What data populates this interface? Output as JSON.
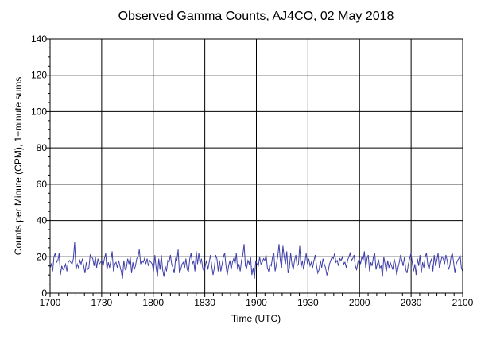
{
  "chart_data": {
    "type": "line",
    "title": "Observed Gamma Counts, AJ4CO, 02 May 2018",
    "xlabel": "Time (UTC)",
    "ylabel": "Counts per Minute (CPM), 1−minute sums",
    "xlim": [
      "17:00",
      "21:00"
    ],
    "ylim": [
      0,
      140
    ],
    "x_ticks": [
      "1700",
      "1730",
      "1800",
      "1830",
      "1900",
      "1930",
      "2000",
      "2030",
      "2100"
    ],
    "y_ticks": [
      "0",
      "20",
      "40",
      "60",
      "80",
      "100",
      "120",
      "140"
    ],
    "grid": true,
    "series_color": "#3f3fa8",
    "x_start": "17:00",
    "x_step": "1 min",
    "values": [
      14,
      16,
      12,
      20,
      22,
      17,
      18,
      22,
      10,
      15,
      13,
      14,
      16,
      12,
      17,
      18,
      17,
      16,
      19,
      28,
      13,
      16,
      14,
      18,
      16,
      19,
      15,
      11,
      17,
      13,
      14,
      21,
      20,
      19,
      15,
      20,
      14,
      19,
      16,
      17,
      18,
      15,
      19,
      22,
      13,
      17,
      14,
      18,
      23,
      12,
      16,
      17,
      14,
      18,
      15,
      12,
      8,
      18,
      13,
      14,
      19,
      16,
      20,
      11,
      17,
      13,
      15,
      19,
      20,
      24,
      16,
      18,
      17,
      19,
      16,
      19,
      15,
      18,
      17,
      16,
      12,
      21,
      14,
      9,
      19,
      13,
      21,
      13,
      9,
      15,
      12,
      18,
      17,
      21,
      16,
      14,
      11,
      19,
      18,
      24,
      11,
      13,
      16,
      17,
      14,
      19,
      13,
      12,
      19,
      22,
      16,
      18,
      12,
      23,
      16,
      22,
      16,
      19,
      14,
      12,
      15,
      18,
      13,
      17,
      21,
      15,
      10,
      14,
      21,
      19,
      12,
      18,
      12,
      16,
      20,
      22,
      15,
      10,
      15,
      18,
      13,
      17,
      19,
      16,
      22,
      13,
      16,
      12,
      18,
      21,
      27,
      15,
      14,
      18,
      16,
      20,
      10,
      14,
      8,
      18,
      16,
      15,
      20,
      16,
      17,
      19,
      18,
      21,
      14,
      12,
      16,
      15,
      20,
      22,
      12,
      16,
      20,
      27,
      18,
      14,
      26,
      20,
      16,
      23,
      11,
      14,
      22,
      16,
      13,
      18,
      21,
      15,
      16,
      26,
      14,
      18,
      13,
      17,
      22,
      16,
      19,
      15,
      17,
      14,
      18,
      21,
      15,
      11,
      13,
      18,
      14,
      19,
      16,
      14,
      10,
      12,
      16,
      18,
      20,
      19,
      22,
      17,
      18,
      15,
      19,
      18,
      20,
      16,
      17,
      14,
      18,
      20,
      22,
      18,
      19,
      21,
      15,
      13,
      17,
      19,
      16,
      20,
      18,
      23,
      14,
      19,
      21,
      12,
      17,
      15,
      20,
      22,
      13,
      16,
      18,
      14,
      15,
      9,
      20,
      16,
      12,
      18,
      14,
      17,
      15,
      13,
      19,
      16,
      10,
      14,
      17,
      21,
      18,
      15,
      20,
      13,
      11,
      16,
      19,
      22,
      17,
      12,
      16,
      10,
      19,
      15,
      21,
      11,
      17,
      14,
      20,
      22,
      16,
      13,
      17,
      19,
      12,
      21,
      15,
      18,
      22,
      14,
      17,
      20,
      19,
      16,
      21,
      18,
      13,
      15,
      20,
      22,
      17,
      11,
      16,
      18,
      19,
      21,
      14,
      12
    ]
  }
}
